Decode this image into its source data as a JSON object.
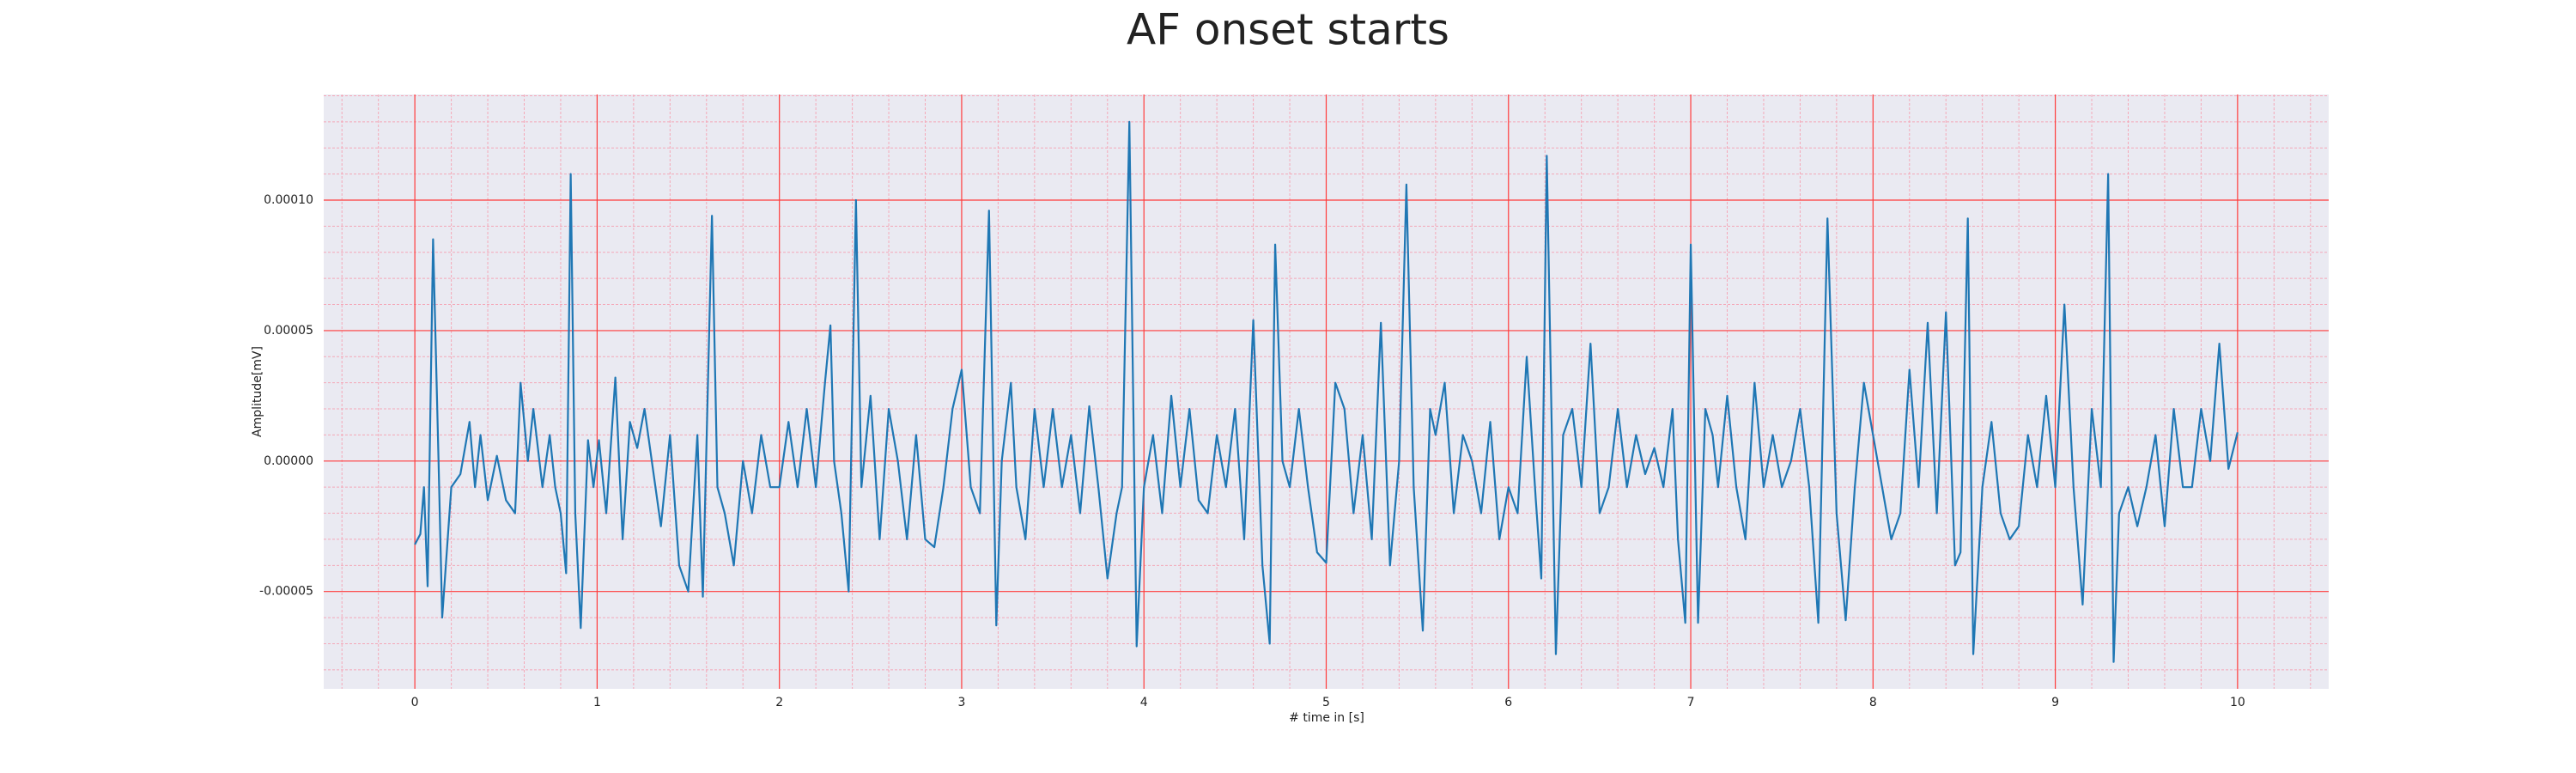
{
  "chart_data": {
    "type": "line",
    "title": "AF onset starts",
    "xlabel": "# time in [s]",
    "ylabel": "Amplitude[mV]",
    "color": "#1f77b4",
    "grid": true,
    "grid_color": "#ff3b3b",
    "minor_grid": true,
    "minor_grid_color": "#f4a8b8",
    "minor_grid_divisions": 5,
    "background": "#eaeaf2",
    "xlim": [
      -0.5,
      10.5
    ],
    "ylim": [
      -8.73e-05,
      0.0001405
    ],
    "xticks": [
      0,
      1,
      2,
      3,
      4,
      5,
      6,
      7,
      8,
      9,
      10
    ],
    "yticks": [
      {
        "value": -5e-05,
        "label": "-0.00005"
      },
      {
        "value": 0,
        "label": "0.00000"
      },
      {
        "value": 5e-05,
        "label": "0.00005"
      },
      {
        "value": 0.0001,
        "label": "0.00010"
      }
    ],
    "x": [
      0,
      0.03,
      0.05,
      0.07,
      0.1,
      0.13,
      0.15,
      0.2,
      0.25,
      0.3,
      0.33,
      0.36,
      0.4,
      0.45,
      0.5,
      0.55,
      0.58,
      0.62,
      0.65,
      0.7,
      0.74,
      0.77,
      0.8,
      0.83,
      0.855,
      0.88,
      0.91,
      0.95,
      0.98,
      1.01,
      1.05,
      1.1,
      1.14,
      1.18,
      1.22,
      1.26,
      1.3,
      1.35,
      1.4,
      1.45,
      1.5,
      1.55,
      1.58,
      1.63,
      1.66,
      1.7,
      1.75,
      1.8,
      1.85,
      1.9,
      1.95,
      2.0,
      2.05,
      2.1,
      2.15,
      2.2,
      2.25,
      2.28,
      2.3,
      2.34,
      2.38,
      2.42,
      2.45,
      2.5,
      2.55,
      2.6,
      2.65,
      2.7,
      2.75,
      2.8,
      2.85,
      2.9,
      2.95,
      3.0,
      3.05,
      3.1,
      3.15,
      3.19,
      3.22,
      3.27,
      3.3,
      3.35,
      3.4,
      3.45,
      3.5,
      3.55,
      3.6,
      3.65,
      3.7,
      3.75,
      3.8,
      3.85,
      3.88,
      3.92,
      3.96,
      4.0,
      4.05,
      4.1,
      4.15,
      4.2,
      4.25,
      4.3,
      4.35,
      4.4,
      4.45,
      4.5,
      4.55,
      4.6,
      4.65,
      4.69,
      4.72,
      4.76,
      4.8,
      4.85,
      4.9,
      4.95,
      5.0,
      5.05,
      5.1,
      5.15,
      5.2,
      5.25,
      5.3,
      5.35,
      5.4,
      5.44,
      5.48,
      5.53,
      5.57,
      5.6,
      5.65,
      5.7,
      5.75,
      5.8,
      5.85,
      5.9,
      5.95,
      6.0,
      6.05,
      6.1,
      6.15,
      6.18,
      6.21,
      6.26,
      6.3,
      6.35,
      6.4,
      6.45,
      6.5,
      6.55,
      6.6,
      6.65,
      6.7,
      6.75,
      6.8,
      6.85,
      6.9,
      6.93,
      6.97,
      7.0,
      7.04,
      7.08,
      7.12,
      7.15,
      7.2,
      7.25,
      7.3,
      7.35,
      7.4,
      7.45,
      7.5,
      7.55,
      7.6,
      7.65,
      7.7,
      7.75,
      7.8,
      7.85,
      7.9,
      7.95,
      8.0,
      8.05,
      8.1,
      8.15,
      8.2,
      8.25,
      8.3,
      8.35,
      8.4,
      8.45,
      8.48,
      8.52,
      8.55,
      8.6,
      8.65,
      8.7,
      8.75,
      8.8,
      8.85,
      8.9,
      8.95,
      9.0,
      9.05,
      9.1,
      9.15,
      9.2,
      9.25,
      9.29,
      9.32,
      9.35,
      9.4,
      9.45,
      9.5,
      9.55,
      9.6,
      9.65,
      9.7,
      9.75,
      9.8,
      9.85,
      9.9,
      9.95,
      10.0
    ],
    "values": [
      -3.2e-05,
      -2.8e-05,
      -1e-05,
      -4.8e-05,
      8.5e-05,
      0,
      -6e-05,
      -1e-05,
      -5e-06,
      1.5e-05,
      -1e-05,
      1e-05,
      -1.5e-05,
      2e-06,
      -1.5e-05,
      -2e-05,
      3e-05,
      0,
      2e-05,
      -1e-05,
      1e-05,
      -1e-05,
      -2e-05,
      -4.3e-05,
      0.00011,
      -2e-05,
      -6.4e-05,
      8e-06,
      -1e-05,
      8e-06,
      -2e-05,
      3.2e-05,
      -3e-05,
      1.5e-05,
      5e-06,
      2e-05,
      0,
      -2.5e-05,
      1e-05,
      -4e-05,
      -5e-05,
      1e-05,
      -5.2e-05,
      9.4e-05,
      -1e-05,
      -2e-05,
      -4e-05,
      0,
      -2e-05,
      1e-05,
      -1e-05,
      -1e-05,
      1.5e-05,
      -1e-05,
      2e-05,
      -1e-05,
      3e-05,
      5.2e-05,
      0,
      -2e-05,
      -5e-05,
      0.0001,
      -1e-05,
      2.5e-05,
      -3e-05,
      2e-05,
      0,
      -3e-05,
      1e-05,
      -3e-05,
      -3.3e-05,
      -1e-05,
      2e-05,
      3.5e-05,
      -1e-05,
      -2e-05,
      9.6e-05,
      -6.3e-05,
      0,
      3e-05,
      -1e-05,
      -3e-05,
      2e-05,
      -1e-05,
      2e-05,
      -1e-05,
      1e-05,
      -2e-05,
      2.1e-05,
      -1e-05,
      -4.5e-05,
      -2e-05,
      -1e-05,
      0.00013,
      -7.1e-05,
      -1e-05,
      1e-05,
      -2e-05,
      2.5e-05,
      -1e-05,
      2e-05,
      -1.5e-05,
      -2e-05,
      1e-05,
      -1e-05,
      2e-05,
      -3e-05,
      5.4e-05,
      -4e-05,
      -7e-05,
      8.3e-05,
      0,
      -1e-05,
      2e-05,
      -1e-05,
      -3.5e-05,
      -3.9e-05,
      3e-05,
      2e-05,
      -2e-05,
      1e-05,
      -3e-05,
      5.3e-05,
      -4e-05,
      0,
      0.000106,
      -1e-05,
      -6.5e-05,
      2e-05,
      1e-05,
      3e-05,
      -2e-05,
      1e-05,
      0,
      -2e-05,
      1.5e-05,
      -3e-05,
      -1e-05,
      -2e-05,
      4e-05,
      -1.5e-05,
      -4.5e-05,
      0.000117,
      -7.4e-05,
      1e-05,
      2e-05,
      -1e-05,
      4.5e-05,
      -2e-05,
      -1e-05,
      2e-05,
      -1e-05,
      1e-05,
      -5e-06,
      5e-06,
      -1e-05,
      2e-05,
      -3e-05,
      -6.2e-05,
      8.3e-05,
      -6.2e-05,
      2e-05,
      1e-05,
      -1e-05,
      2.5e-05,
      -1e-05,
      -3e-05,
      3e-05,
      -1e-05,
      1e-05,
      -1e-05,
      0,
      2e-05,
      -1e-05,
      -6.2e-05,
      9.3e-05,
      -2e-05,
      -6.1e-05,
      -1e-05,
      3e-05,
      1e-05,
      -1e-05,
      -3e-05,
      -2e-05,
      3.5e-05,
      -1e-05,
      5.3e-05,
      -2e-05,
      5.7e-05,
      -4e-05,
      -3.5e-05,
      9.3e-05,
      -7.4e-05,
      -1e-05,
      1.5e-05,
      -2e-05,
      -3e-05,
      -2.5e-05,
      1e-05,
      -1e-05,
      2.5e-05,
      -1e-05,
      6e-05,
      -1e-05,
      -5.5e-05,
      2e-05,
      -1e-05,
      0.00011,
      -7.7e-05,
      -2e-05,
      -1e-05,
      -2.5e-05,
      -1e-05,
      1e-05,
      -2.5e-05,
      2e-05,
      -1e-05,
      -1e-05,
      2e-05,
      0,
      4.5e-05,
      -3e-06,
      1.1e-05
    ]
  }
}
